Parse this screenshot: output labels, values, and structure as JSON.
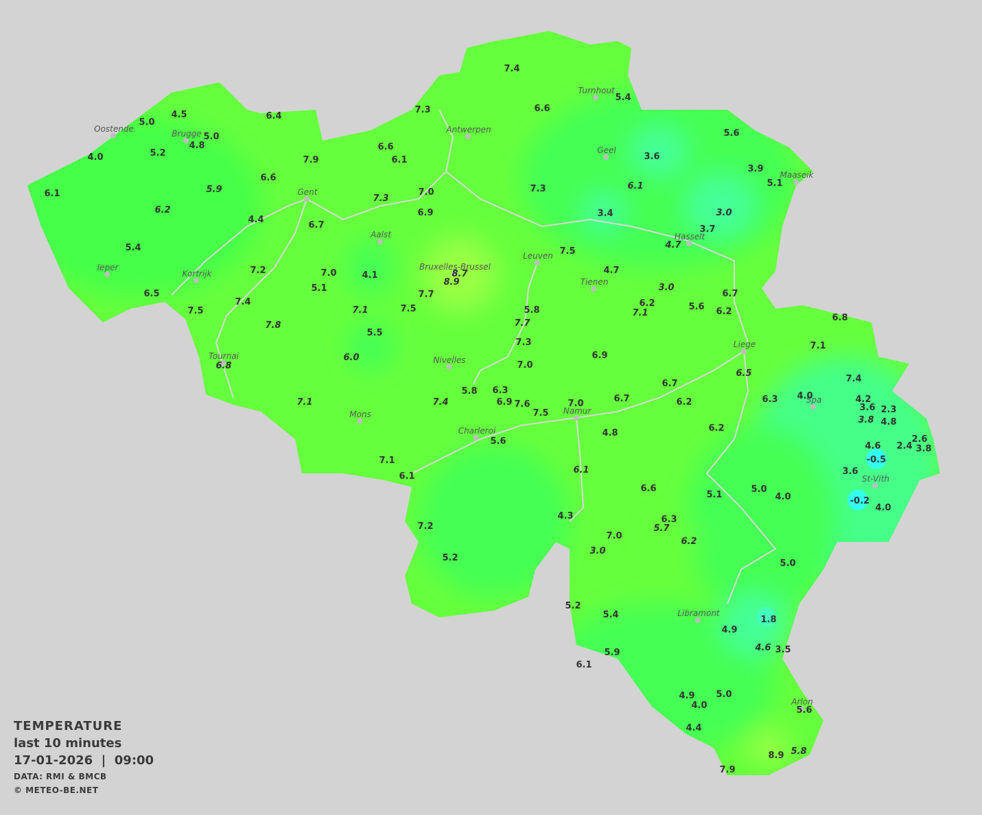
{
  "legend": {
    "title": "TEMPERATURE",
    "period": "last 10 minutes",
    "datetime": "17-01-2026  |  09:00",
    "source": "DATA: RMI & BMCB",
    "copyright": "© METEO-BE.NET"
  },
  "colors": {
    "background": "#d3d3d3",
    "warm": "#99ff44",
    "base": "#66ff3d",
    "cool": "#44ff55",
    "cooler": "#44ff88",
    "cold": "#33ffee",
    "river": "#d8d8d8",
    "label": "#333333"
  },
  "cities": [
    "Oostende",
    "Brugge",
    "Antwerpen",
    "Turnhout",
    "Geel",
    "Maaseik",
    "Gent",
    "Aalst",
    "Hasselt",
    "Leuven",
    "Ieper",
    "Kortrijk",
    "Bruxelles-Brussel",
    "Tienen",
    "Liege",
    "Tournai",
    "Nivelles",
    "Spa",
    "Namur",
    "Mons",
    "Charleroi",
    "St-Vith",
    "Libramont",
    "Arlon"
  ],
  "stations": [
    "4.5",
    "5.0",
    "5.0",
    "4.8",
    "6.4",
    "4.0",
    "5.2",
    "7.3",
    "7.4",
    "6.6",
    "5.4",
    "6.6",
    "6.1",
    "7.9",
    "6.6",
    "5.9",
    "6.1",
    "6.2",
    "4.4",
    "7.3",
    "7.0",
    "6.9",
    "6.7",
    "7.3",
    "3.6",
    "5.6",
    "3.9",
    "5.1",
    "6.1",
    "3.4",
    "3.0",
    "3.7",
    "4.7",
    "5.4",
    "7.2",
    "7.0",
    "5.1",
    "4.1",
    "8.7",
    "8.9",
    "7.5",
    "4.7",
    "3.0",
    "6.5",
    "7.4",
    "7.5",
    "7.1",
    "7.7",
    "7.5",
    "5.8",
    "6.2",
    "7.1",
    "5.6",
    "6.2",
    "6.7",
    "6.8",
    "7.8",
    "5.5",
    "7.7",
    "7.3",
    "7.1",
    "6.0",
    "6.9",
    "6.8",
    "7.0",
    "6.5",
    "7.4",
    "5.8",
    "6.3",
    "6.7",
    "6.3",
    "4.0",
    "4.2",
    "7.1",
    "7.4",
    "6.9",
    "7.6",
    "7.0",
    "6.7",
    "6.2",
    "3.6",
    "2.3",
    "7.5",
    "3.8",
    "4.8",
    "5.6",
    "4.8",
    "6.2",
    "4.6",
    "2.6",
    "2.4",
    "3.8",
    "-0.5",
    "7.1",
    "6.1",
    "3.6",
    "6.1",
    "6.6",
    "5.1",
    "5.0",
    "4.0",
    "-0.2",
    "4.3",
    "6.3",
    "5.7",
    "4.0",
    "7.2",
    "7.0",
    "6.2",
    "3.0",
    "5.2",
    "5.0",
    "5.2",
    "5.4",
    "1.8",
    "4.9",
    "4.6",
    "3.5",
    "5.9",
    "6.1",
    "4.9",
    "5.0",
    "4.0",
    "5.6",
    "4.4",
    "8.9",
    "5.8",
    "7.9"
  ]
}
